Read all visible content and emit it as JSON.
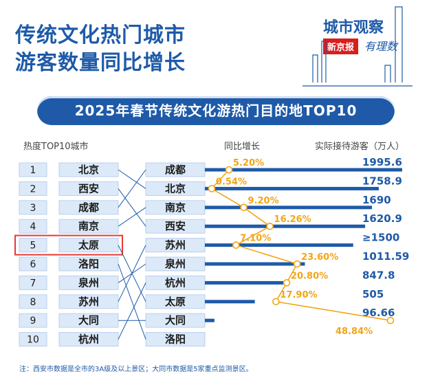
{
  "header": {
    "title_line1": "传统文化热门城市",
    "title_line2": "游客数量同比增长",
    "brand_top": "城市观察",
    "brand_badge": "新京报",
    "brand_suffix": "有理数",
    "banner": "2025年春节传统文化游热门目的地TOP10"
  },
  "columns": {
    "rank_city": "热度TOP10城市",
    "growth": "同比增长",
    "visitors": "实际接待游客（万人）"
  },
  "note": "注：西安市数据是全市的3A级及以上景区；大同市数据是5家重点监测景区。",
  "chart_data": {
    "type": "bar",
    "highlight_rank": 5,
    "popularity_ranking": [
      {
        "rank": "1",
        "city": "北京"
      },
      {
        "rank": "2",
        "city": "西安"
      },
      {
        "rank": "3",
        "city": "成都"
      },
      {
        "rank": "4",
        "city": "南京"
      },
      {
        "rank": "5",
        "city": "太原"
      },
      {
        "rank": "6",
        "city": "洛阳"
      },
      {
        "rank": "7",
        "city": "泉州"
      },
      {
        "rank": "8",
        "city": "苏州"
      },
      {
        "rank": "9",
        "city": "大同"
      },
      {
        "rank": "10",
        "city": "杭州"
      }
    ],
    "visitor_ranking": [
      {
        "city": "成都",
        "growth_label": "5.20%",
        "growth": 5.2,
        "visitors_label": "1995.6",
        "visitors": 1995.6
      },
      {
        "city": "北京",
        "growth_label": "0.54%",
        "growth": 0.54,
        "visitors_label": "1758.9",
        "visitors": 1758.9
      },
      {
        "city": "南京",
        "growth_label": "9.20%",
        "growth": 9.2,
        "visitors_label": "1690",
        "visitors": 1690
      },
      {
        "city": "西安",
        "growth_label": "16.26%",
        "growth": 16.26,
        "visitors_label": "1620.9",
        "visitors": 1620.9
      },
      {
        "city": "苏州",
        "growth_label": "7.10%",
        "growth": 7.1,
        "visitors_label": "≥1500",
        "visitors": 1500
      },
      {
        "city": "泉州",
        "growth_label": "23.60%",
        "growth": 23.6,
        "visitors_label": "1011.59",
        "visitors": 1011.59
      },
      {
        "city": "杭州",
        "growth_label": "20.80%",
        "growth": 20.8,
        "visitors_label": "847.8",
        "visitors": 847.8
      },
      {
        "city": "太原",
        "growth_label": "17.90%",
        "growth": 17.9,
        "visitors_label": "505",
        "visitors": 505
      },
      {
        "city": "大同",
        "growth_label": "48.84%",
        "growth": 48.84,
        "visitors_label": "96.66",
        "visitors": 96.66
      },
      {
        "city": "洛阳",
        "growth_label": "",
        "growth": null,
        "visitors_label": "",
        "visitors": null
      }
    ],
    "colors": {
      "primary": "#1e5aa8",
      "pill_fill": "#dce9f8",
      "growth_line": "#f2a516",
      "highlight": "#e53935"
    }
  }
}
